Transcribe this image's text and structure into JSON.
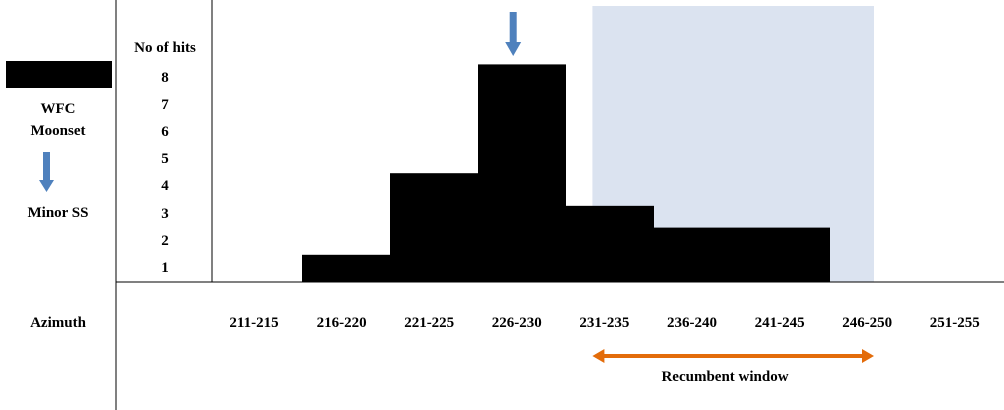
{
  "colors": {
    "bar": "#000000",
    "window_fill": "#dbe3f0",
    "marker_arrow": "#4f81bd",
    "window_arrow": "#e36c0a",
    "grid_line": "#000000"
  },
  "left_panel": {
    "wfc_label": "WFC",
    "moonset_label": "Moonset",
    "minor_ss_label": "Minor SS",
    "azimuth_label": "Azimuth",
    "legend_icons": [
      "black-swatch",
      "down-arrow-icon"
    ]
  },
  "chart_data": {
    "type": "bar",
    "ylabel": "No of hits",
    "xlabel": "Azimuth",
    "ylim": [
      0,
      8
    ],
    "yticks": [
      "1",
      "2",
      "3",
      "4",
      "5",
      "6",
      "7",
      "8"
    ],
    "categories": [
      "211-215",
      "216-220",
      "221-225",
      "226-230",
      "231-235",
      "236-240",
      "241-245",
      "246-250",
      "251-255"
    ],
    "segments": [
      {
        "from": 216,
        "to": 221,
        "value": 1
      },
      {
        "from": 221,
        "to": 226,
        "value": 4
      },
      {
        "from": 226,
        "to": 231,
        "value": 8
      },
      {
        "from": 231,
        "to": 236,
        "value": 2.8
      },
      {
        "from": 236,
        "to": 246,
        "value": 2
      }
    ],
    "shaded_window": {
      "from": 232.5,
      "to": 248.5
    },
    "marker_azimuth": 228,
    "window_label": "Recumbent window",
    "window_arrow": {
      "from": 232.5,
      "to": 248.5
    }
  }
}
